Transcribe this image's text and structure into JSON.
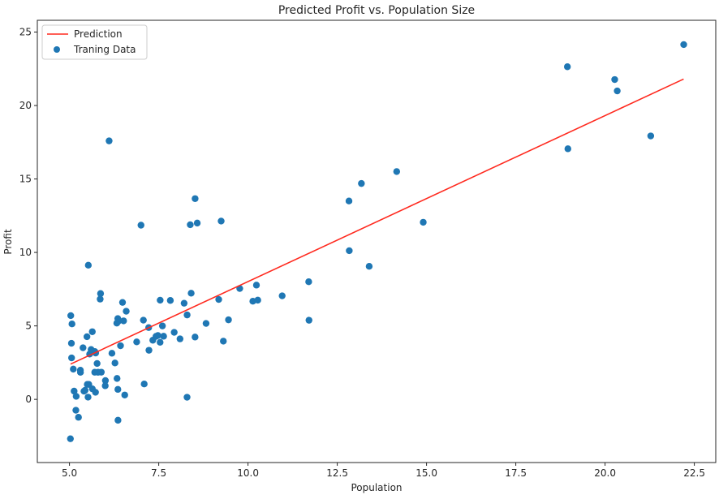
{
  "chart_data": {
    "type": "scatter",
    "title": "Predicted Profit vs. Population Size",
    "xlabel": "Population",
    "ylabel": "Profit",
    "xlim": [
      4.1,
      23.1
    ],
    "ylim": [
      -4.3,
      25.8
    ],
    "xticks": [
      "5.0",
      "7.5",
      "10.0",
      "12.5",
      "15.0",
      "17.5",
      "20.0",
      "22.5"
    ],
    "yticks": [
      "0",
      "5",
      "10",
      "15",
      "20",
      "25"
    ],
    "grid": false,
    "legend": {
      "position": "top-left",
      "entries": [
        "Prediction",
        "Traning Data"
      ]
    },
    "colors": {
      "prediction": "#ff2a1f",
      "training": "#1f77b4"
    },
    "series": [
      {
        "name": "Prediction",
        "kind": "line",
        "x": [
          5.03,
          22.2
        ],
        "y": [
          2.4,
          21.8
        ]
      },
      {
        "name": "Traning Data",
        "kind": "scatter",
        "x": [
          6.1101,
          5.5277,
          8.5186,
          7.0032,
          5.8598,
          8.3829,
          7.4764,
          8.5781,
          6.4862,
          5.0546,
          5.7107,
          14.164,
          5.734,
          8.4084,
          5.6407,
          5.3794,
          6.3654,
          5.1301,
          6.4296,
          7.0708,
          6.1891,
          20.27,
          5.4901,
          6.3261,
          5.5649,
          18.945,
          12.828,
          10.957,
          13.176,
          22.203,
          5.2524,
          6.5894,
          9.2482,
          5.8918,
          8.2111,
          7.9334,
          8.0959,
          5.6063,
          12.836,
          6.3534,
          5.4069,
          6.8825,
          11.708,
          5.7737,
          7.8247,
          7.0931,
          5.0702,
          5.8014,
          11.7,
          5.5416,
          7.5402,
          5.3077,
          7.4239,
          7.6031,
          6.3328,
          6.3589,
          6.2742,
          5.6397,
          9.3102,
          9.4536,
          8.8254,
          5.1793,
          21.279,
          14.908,
          18.959,
          7.2182,
          8.2951,
          10.236,
          5.4994,
          20.341,
          10.136,
          7.3345,
          6.0062,
          7.2259,
          5.0269,
          6.5479,
          7.5386,
          5.0365,
          10.274,
          5.1077,
          5.7292,
          5.1884,
          6.3557,
          9.7687,
          6.5159,
          8.5172,
          9.1802,
          6.002,
          5.5204,
          5.0594,
          5.7077,
          7.6366,
          5.8707,
          5.3054,
          8.2934,
          13.394,
          5.4369
        ],
        "y": [
          17.592,
          9.1302,
          13.662,
          11.854,
          6.8233,
          11.886,
          4.3483,
          12.0,
          6.5987,
          3.8166,
          3.2522,
          15.505,
          3.1551,
          7.2258,
          0.71618,
          3.5129,
          5.3048,
          0.56077,
          3.6518,
          5.3893,
          3.1386,
          21.767,
          4.263,
          5.1875,
          3.0825,
          22.638,
          13.501,
          7.0467,
          14.692,
          24.147,
          -1.22,
          5.9966,
          12.134,
          1.8495,
          6.5426,
          4.5623,
          4.1164,
          3.3928,
          10.117,
          5.4974,
          0.55657,
          3.9115,
          5.3854,
          2.4406,
          6.7318,
          1.0463,
          5.1337,
          1.844,
          8.0043,
          1.0179,
          6.7504,
          1.8396,
          4.2885,
          4.9981,
          1.4233,
          -1.4211,
          2.4756,
          4.6042,
          3.9624,
          5.4141,
          5.1694,
          -0.74279,
          17.929,
          12.054,
          17.054,
          4.8852,
          5.7442,
          7.7754,
          1.0173,
          20.992,
          6.6799,
          4.0259,
          1.2784,
          3.3411,
          -2.6807,
          0.29678,
          3.8845,
          5.7014,
          6.7526,
          2.0576,
          0.47953,
          0.20421,
          0.67861,
          7.5435,
          5.3436,
          4.2415,
          6.7981,
          0.92695,
          0.152,
          2.8214,
          1.8451,
          4.2959,
          7.2029,
          1.9869,
          0.14454,
          9.0551,
          0.61705
        ]
      }
    ]
  }
}
